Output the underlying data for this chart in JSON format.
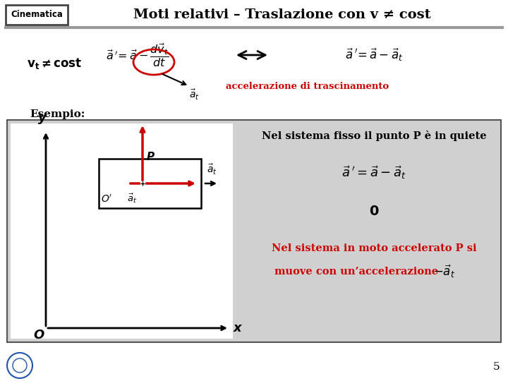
{
  "bg_color": "#ffffff",
  "header_border_color": "#444444",
  "title_text": "Moti relativi – Traslazione con v ≠ cost",
  "cinematica_label": "Cinematica",
  "separator_color": "#999999",
  "example_bg": "#d0d0d0",
  "example_border": "#555555",
  "red_color": "#cc0000",
  "black": "#000000",
  "page_number": "5",
  "accel_label": "accelerazione di trascinamento",
  "esempio_label": "Esempio:",
  "fisso_text": "Nel sistema fisso il punto P è in quiete",
  "zero_label": "0",
  "mobile_text1": "Nel sistema in moto accelerato P si",
  "mobile_text2": "muove con un’accelerazione"
}
